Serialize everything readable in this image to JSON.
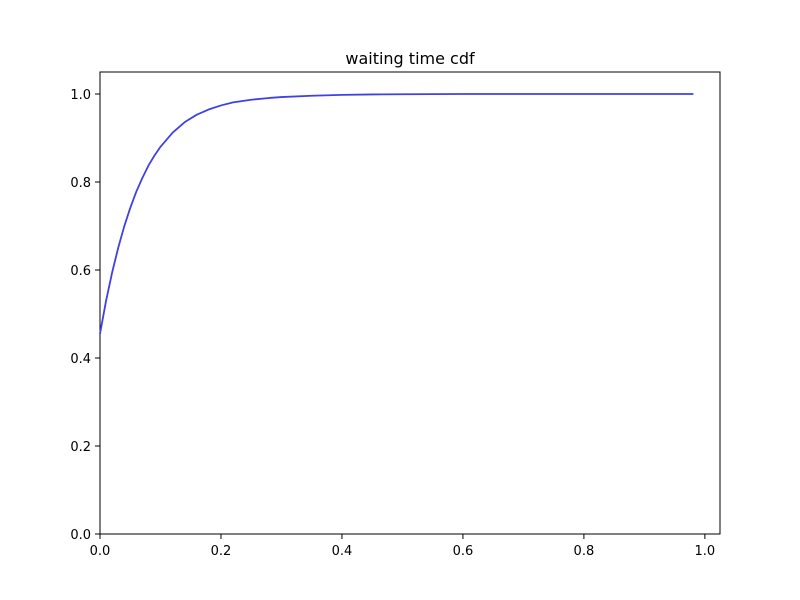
{
  "chart_data": {
    "type": "line",
    "title": "waiting time cdf",
    "xlabel": "",
    "ylabel": "",
    "xlim": [
      0.0,
      1.025
    ],
    "ylim": [
      0.0,
      1.05
    ],
    "x_ticks": [
      0.0,
      0.2,
      0.4,
      0.6,
      0.8,
      1.0
    ],
    "x_tick_labels": [
      "0.0",
      "0.2",
      "0.4",
      "0.6",
      "0.8",
      "1.0"
    ],
    "y_ticks": [
      0.0,
      0.2,
      0.4,
      0.6,
      0.8,
      1.0
    ],
    "y_tick_labels": [
      "0.0",
      "0.2",
      "0.4",
      "0.6",
      "0.8",
      "1.0"
    ],
    "grid": false,
    "line_color": "#4040e6",
    "series": [
      {
        "x": [
          0.0,
          0.01,
          0.02,
          0.03,
          0.04,
          0.05,
          0.06,
          0.07,
          0.08,
          0.09,
          0.1,
          0.12,
          0.14,
          0.16,
          0.18,
          0.2,
          0.22,
          0.25,
          0.28,
          0.3,
          0.35,
          0.4,
          0.45,
          0.5,
          0.6,
          0.7,
          0.8,
          0.9,
          0.98
        ],
        "y": [
          0.455,
          0.53,
          0.594,
          0.65,
          0.699,
          0.741,
          0.778,
          0.809,
          0.837,
          0.86,
          0.88,
          0.912,
          0.936,
          0.953,
          0.965,
          0.974,
          0.981,
          0.987,
          0.991,
          0.993,
          0.996,
          0.998,
          0.999,
          0.9995,
          1.0,
          1.0,
          1.0,
          1.0,
          1.0
        ]
      }
    ]
  }
}
